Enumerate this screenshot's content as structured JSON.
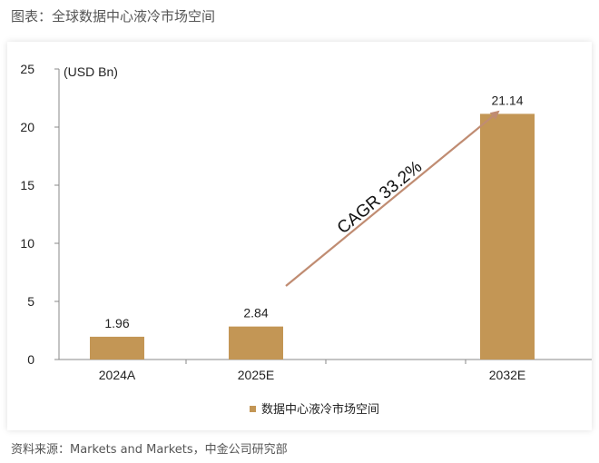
{
  "page": {
    "title": "图表：全球数据中心液冷市场空间",
    "source": "资料来源：Markets and Markets，中金公司研究部"
  },
  "chart_data": {
    "type": "bar",
    "unit_label": "(USD Bn)",
    "categories": [
      "2024A",
      "2025E",
      "2032E"
    ],
    "series": [
      {
        "name": "数据中心液冷市场空间",
        "values": [
          1.96,
          2.84,
          21.14
        ],
        "color": "#C39655"
      }
    ],
    "data_labels": [
      "1.96",
      "2.84",
      "21.14"
    ],
    "ylim": [
      0,
      25
    ],
    "yticks": [
      "0",
      "5",
      "10",
      "15",
      "20",
      "25"
    ],
    "annotation": {
      "text": "CAGR 33.2%",
      "arrow_color": "#C08C72"
    },
    "grid": false,
    "legend": "bottom-center",
    "title": "",
    "xlabel": "",
    "ylabel": ""
  }
}
